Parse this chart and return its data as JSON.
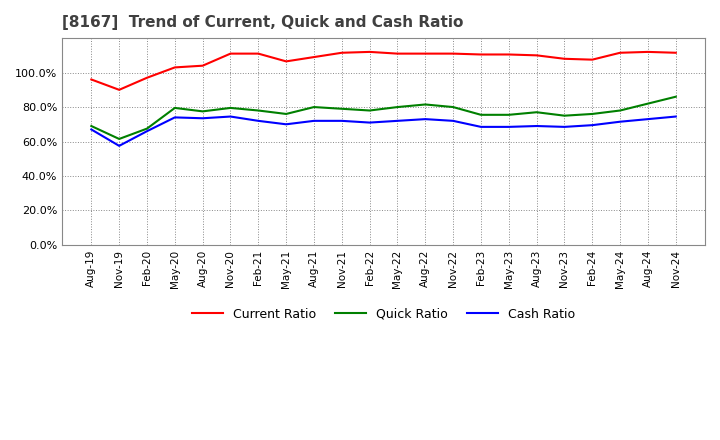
{
  "title": "[8167]  Trend of Current, Quick and Cash Ratio",
  "title_color": "#404040",
  "background_color": "#ffffff",
  "plot_background": "#ffffff",
  "grid_color": "#888888",
  "ylim": [
    0.0,
    1.2
  ],
  "yticks": [
    0.0,
    0.2,
    0.4,
    0.6,
    0.8,
    1.0
  ],
  "x_labels": [
    "Aug-19",
    "Nov-19",
    "Feb-20",
    "May-20",
    "Aug-20",
    "Nov-20",
    "Feb-21",
    "May-21",
    "Aug-21",
    "Nov-21",
    "Feb-22",
    "May-22",
    "Aug-22",
    "Nov-22",
    "Feb-23",
    "May-23",
    "Aug-23",
    "Nov-23",
    "Feb-24",
    "May-24",
    "Aug-24",
    "Nov-24"
  ],
  "current_ratio": [
    0.96,
    0.9,
    0.97,
    1.03,
    1.04,
    1.11,
    1.11,
    1.065,
    1.09,
    1.115,
    1.12,
    1.11,
    1.11,
    1.11,
    1.105,
    1.105,
    1.1,
    1.08,
    1.075,
    1.115,
    1.12,
    1.115
  ],
  "quick_ratio": [
    0.69,
    0.615,
    0.675,
    0.795,
    0.775,
    0.795,
    0.78,
    0.76,
    0.8,
    0.79,
    0.78,
    0.8,
    0.815,
    0.8,
    0.755,
    0.755,
    0.77,
    0.75,
    0.76,
    0.78,
    0.82,
    0.86
  ],
  "cash_ratio": [
    0.67,
    0.575,
    0.66,
    0.74,
    0.735,
    0.745,
    0.72,
    0.7,
    0.72,
    0.72,
    0.71,
    0.72,
    0.73,
    0.72,
    0.685,
    0.685,
    0.69,
    0.685,
    0.695,
    0.715,
    0.73,
    0.745
  ],
  "current_color": "#ff0000",
  "quick_color": "#008000",
  "cash_color": "#0000ff",
  "line_width": 1.5,
  "legend_labels": [
    "Current Ratio",
    "Quick Ratio",
    "Cash Ratio"
  ]
}
